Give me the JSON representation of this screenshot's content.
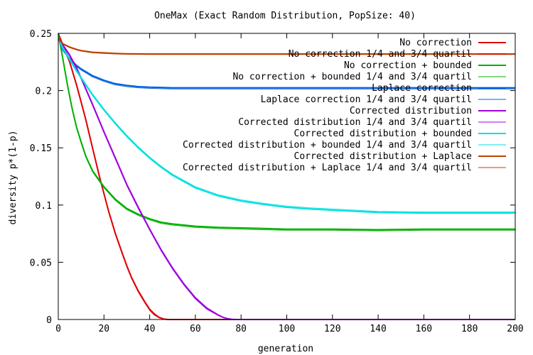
{
  "chart_data": {
    "type": "line",
    "title": "OneMax (Exact Random Distribution, PopSize: 40)",
    "xlabel": "generation",
    "ylabel": "diversity p*(1-p)",
    "xlim": [
      0,
      200
    ],
    "ylim": [
      0,
      0.25
    ],
    "xticks": [
      "0",
      "20",
      "40",
      "60",
      "80",
      "100",
      "120",
      "140",
      "160",
      "180",
      "200"
    ],
    "yticks": [
      "0",
      "0.05",
      "0.1",
      "0.15",
      "0.2",
      "0.25"
    ],
    "grid": false,
    "legend_position": "top-right",
    "series": [
      {
        "name": "No correction",
        "color": "#e00000",
        "x": [
          0,
          2,
          5,
          8,
          10,
          12,
          15,
          18,
          20,
          22,
          25,
          28,
          30,
          32,
          35,
          38,
          40,
          42,
          44,
          46,
          48,
          50,
          60,
          80,
          100,
          120,
          140,
          160,
          180,
          200
        ],
        "y": [
          0.25,
          0.24,
          0.225,
          0.205,
          0.19,
          0.175,
          0.15,
          0.125,
          0.11,
          0.095,
          0.075,
          0.058,
          0.047,
          0.037,
          0.025,
          0.015,
          0.009,
          0.005,
          0.002,
          0.0005,
          0,
          0,
          0,
          0,
          0,
          0,
          0,
          0,
          0,
          0
        ]
      },
      {
        "name": "No correction 1/4 and 3/4 quartil",
        "color": "#e00000",
        "x": [
          0,
          2,
          5,
          8,
          10,
          12,
          15,
          18,
          20,
          22,
          25,
          28,
          30,
          32,
          35,
          38,
          40,
          42,
          44,
          46,
          48,
          50,
          60,
          80,
          100,
          120,
          140,
          160,
          180,
          200
        ],
        "y": [
          0.25,
          0.239,
          0.224,
          0.204,
          0.189,
          0.174,
          0.149,
          0.124,
          0.109,
          0.094,
          0.074,
          0.057,
          0.046,
          0.036,
          0.024,
          0.014,
          0.008,
          0.004,
          0.0015,
          0.0004,
          0,
          0,
          0,
          0,
          0,
          0,
          0,
          0,
          0,
          0
        ]
      },
      {
        "name": "No correction + bounded",
        "color": "#00b000",
        "x": [
          0,
          2,
          4,
          6,
          8,
          10,
          12,
          15,
          20,
          25,
          30,
          35,
          40,
          45,
          50,
          60,
          70,
          80,
          90,
          100,
          120,
          140,
          160,
          180,
          200
        ],
        "y": [
          0.25,
          0.228,
          0.205,
          0.185,
          0.168,
          0.155,
          0.143,
          0.13,
          0.116,
          0.105,
          0.097,
          0.092,
          0.088,
          0.085,
          0.0835,
          0.0815,
          0.0805,
          0.08,
          0.0795,
          0.079,
          0.079,
          0.0785,
          0.079,
          0.079,
          0.079
        ]
      },
      {
        "name": "No correction + bounded 1/4 and 3/4 quartil",
        "color": "#00b000",
        "x": [
          0,
          2,
          4,
          6,
          8,
          10,
          12,
          15,
          20,
          25,
          30,
          35,
          40,
          45,
          50,
          60,
          70,
          80,
          90,
          100,
          120,
          140,
          160,
          180,
          200
        ],
        "y": [
          0.25,
          0.227,
          0.204,
          0.184,
          0.167,
          0.154,
          0.142,
          0.129,
          0.115,
          0.104,
          0.096,
          0.091,
          0.087,
          0.084,
          0.0825,
          0.0805,
          0.0795,
          0.079,
          0.0785,
          0.078,
          0.078,
          0.0775,
          0.078,
          0.078,
          0.078
        ]
      },
      {
        "name": "Laplace correction",
        "color": "#0060e0",
        "x": [
          0,
          2,
          5,
          8,
          10,
          15,
          20,
          25,
          30,
          35,
          40,
          50,
          60,
          80,
          100,
          120,
          140,
          160,
          180,
          200
        ],
        "y": [
          0.245,
          0.236,
          0.228,
          0.222,
          0.219,
          0.213,
          0.209,
          0.206,
          0.2045,
          0.2035,
          0.203,
          0.2025,
          0.2025,
          0.2025,
          0.2025,
          0.2025,
          0.2025,
          0.2025,
          0.2025,
          0.2025
        ]
      },
      {
        "name": "Laplace correction 1/4 and 3/4 quartil",
        "color": "#0060e0",
        "x": [
          0,
          2,
          5,
          8,
          10,
          15,
          20,
          25,
          30,
          35,
          40,
          50,
          60,
          80,
          100,
          120,
          140,
          160,
          180,
          200
        ],
        "y": [
          0.245,
          0.235,
          0.227,
          0.221,
          0.218,
          0.212,
          0.208,
          0.205,
          0.2035,
          0.2025,
          0.202,
          0.2015,
          0.2015,
          0.2015,
          0.2015,
          0.2015,
          0.2015,
          0.2015,
          0.2015,
          0.2015
        ]
      },
      {
        "name": "Corrected distribution",
        "color": "#a000e0",
        "x": [
          0,
          2,
          5,
          8,
          10,
          15,
          20,
          25,
          30,
          35,
          40,
          45,
          50,
          55,
          60,
          65,
          70,
          72,
          74,
          76,
          78,
          80,
          100,
          120,
          140,
          160,
          180,
          200
        ],
        "y": [
          0.245,
          0.24,
          0.231,
          0.22,
          0.211,
          0.188,
          0.164,
          0.141,
          0.118,
          0.098,
          0.079,
          0.061,
          0.045,
          0.031,
          0.019,
          0.01,
          0.004,
          0.002,
          0.0008,
          0.0002,
          0,
          0,
          0,
          0,
          0,
          0,
          0,
          0
        ]
      },
      {
        "name": "Corrected distribution 1/4 and 3/4 quartil",
        "color": "#a000e0",
        "x": [
          0,
          2,
          5,
          8,
          10,
          15,
          20,
          25,
          30,
          35,
          40,
          45,
          50,
          55,
          60,
          65,
          70,
          72,
          74,
          76,
          78,
          80,
          100,
          120,
          140,
          160,
          180,
          200
        ],
        "y": [
          0.245,
          0.239,
          0.23,
          0.219,
          0.21,
          0.187,
          0.163,
          0.14,
          0.117,
          0.097,
          0.078,
          0.06,
          0.044,
          0.03,
          0.018,
          0.009,
          0.0035,
          0.0018,
          0.0007,
          0.0002,
          0,
          0,
          0,
          0,
          0,
          0,
          0,
          0
        ]
      },
      {
        "name": "Corrected distribution + bounded",
        "color": "#00e0e0",
        "x": [
          0,
          2,
          5,
          8,
          10,
          15,
          20,
          25,
          30,
          35,
          40,
          45,
          50,
          60,
          70,
          80,
          90,
          100,
          110,
          120,
          140,
          160,
          180,
          200
        ],
        "y": [
          0.245,
          0.237,
          0.227,
          0.217,
          0.211,
          0.196,
          0.183,
          0.171,
          0.16,
          0.15,
          0.141,
          0.133,
          0.126,
          0.115,
          0.108,
          0.1035,
          0.1005,
          0.098,
          0.0965,
          0.0955,
          0.0935,
          0.093,
          0.093,
          0.093
        ]
      },
      {
        "name": "Corrected distribution + bounded 1/4 and 3/4 quartil",
        "color": "#00e0e0",
        "x": [
          0,
          2,
          5,
          8,
          10,
          15,
          20,
          25,
          30,
          35,
          40,
          45,
          50,
          60,
          70,
          80,
          90,
          100,
          110,
          120,
          140,
          160,
          180,
          200
        ],
        "y": [
          0.245,
          0.238,
          0.228,
          0.218,
          0.212,
          0.197,
          0.184,
          0.172,
          0.161,
          0.151,
          0.142,
          0.134,
          0.127,
          0.116,
          0.109,
          0.1045,
          0.1015,
          0.099,
          0.0975,
          0.0965,
          0.0945,
          0.094,
          0.094,
          0.094
        ]
      },
      {
        "name": "Corrected distribution + Laplace",
        "color": "#c04000",
        "x": [
          0,
          2,
          5,
          8,
          10,
          15,
          20,
          25,
          30,
          40,
          50,
          60,
          80,
          100,
          120,
          140,
          160,
          180,
          200
        ],
        "y": [
          0.245,
          0.241,
          0.238,
          0.236,
          0.235,
          0.2335,
          0.233,
          0.2325,
          0.2322,
          0.232,
          0.232,
          0.232,
          0.232,
          0.232,
          0.232,
          0.232,
          0.232,
          0.232,
          0.232
        ]
      },
      {
        "name": "Corrected distribution + Laplace 1/4 and 3/4 quartil",
        "color": "#c04000",
        "x": [
          0,
          2,
          5,
          8,
          10,
          15,
          20,
          25,
          30,
          40,
          50,
          60,
          80,
          100,
          120,
          140,
          160,
          180,
          200
        ],
        "y": [
          0.245,
          0.2405,
          0.2375,
          0.2355,
          0.2345,
          0.233,
          0.2325,
          0.232,
          0.2317,
          0.2315,
          0.2315,
          0.2315,
          0.2315,
          0.2315,
          0.2315,
          0.2315,
          0.2315,
          0.2315,
          0.2315
        ]
      }
    ]
  }
}
